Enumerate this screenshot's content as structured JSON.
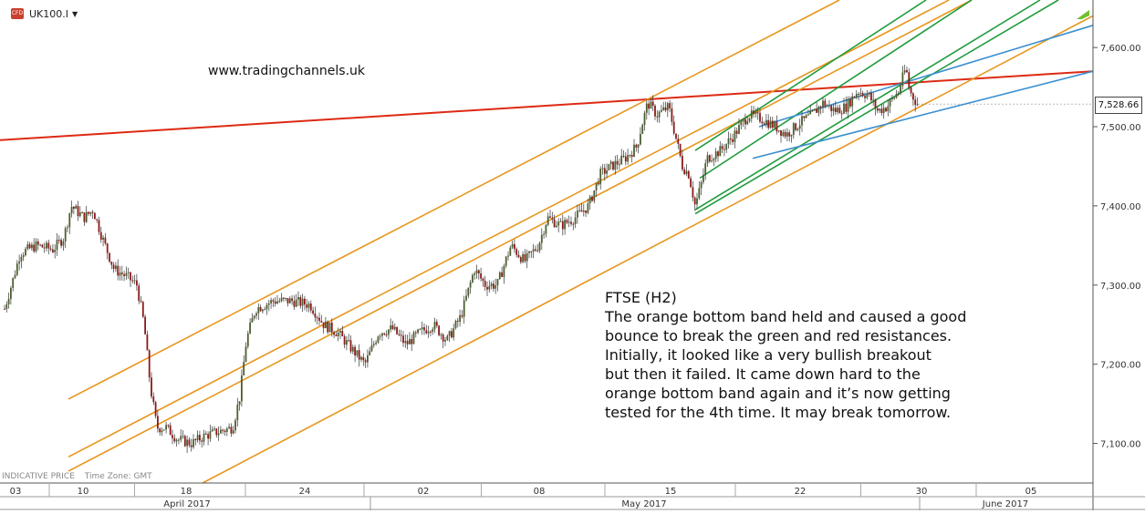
{
  "header": {
    "symbol": "UK100.I",
    "symbol_icon": "cfd-symbol-icon"
  },
  "annotations": {
    "website": "www.tradingchannels.uk",
    "title": "FTSE (H2)",
    "body": [
      "The orange bottom band held and caused a good",
      "bounce to break the green and red resistances.",
      "Initially, it looked like a very bullish breakout",
      "but then it failed. It came down hard to the",
      "orange bottom band again and it’s now getting",
      "tested for the 4th time. It may break tomorrow."
    ]
  },
  "footer": {
    "indicative": "INDICATIVE PRICE",
    "timezone": "Time Zone: GMT"
  },
  "price_tag": "7,528.66",
  "colors": {
    "bull": "#4c5f2e",
    "bear": "#8b1a1a",
    "orange": "#e8961e",
    "green": "#1f9b3c",
    "red": "#dd2a14",
    "blue": "#3a8fcf",
    "grid": "#cccccc",
    "axis_text": "#333333"
  },
  "chart_data": {
    "type": "candlestick",
    "timeframe": "H2",
    "ylim": [
      7050,
      7660
    ],
    "y_ticks": [
      "7,100.00",
      "7,200.00",
      "7,300.00",
      "7,400.00",
      "7,500.00",
      "7,600.00"
    ],
    "y_tick_values": [
      7100,
      7200,
      7300,
      7400,
      7500,
      7600
    ],
    "x_day_labels": [
      "03",
      "10",
      "18",
      "24",
      "02",
      "08",
      "15",
      "22",
      "30",
      "05"
    ],
    "x_day_positions": [
      17,
      91,
      204,
      334,
      464,
      591,
      735,
      877,
      1010,
      1130
    ],
    "x_month_labels": [
      "April 2017",
      "May 2017",
      "June 2017"
    ],
    "x_month_positions": [
      205,
      706,
      1102
    ],
    "last_price": 7528.66,
    "path": [
      [
        5,
        7270
      ],
      [
        15,
        7310
      ],
      [
        22,
        7340
      ],
      [
        40,
        7350
      ],
      [
        58,
        7345
      ],
      [
        70,
        7360
      ],
      [
        78,
        7400
      ],
      [
        92,
        7385
      ],
      [
        102,
        7395
      ],
      [
        112,
        7360
      ],
      [
        125,
        7320
      ],
      [
        140,
        7310
      ],
      [
        150,
        7300
      ],
      [
        158,
        7250
      ],
      [
        165,
        7170
      ],
      [
        172,
        7120
      ],
      [
        182,
        7120
      ],
      [
        195,
        7105
      ],
      [
        210,
        7100
      ],
      [
        225,
        7110
      ],
      [
        240,
        7115
      ],
      [
        255,
        7120
      ],
      [
        263,
        7160
      ],
      [
        270,
        7230
      ],
      [
        280,
        7270
      ],
      [
        300,
        7280
      ],
      [
        320,
        7280
      ],
      [
        340,
        7275
      ],
      [
        355,
        7250
      ],
      [
        370,
        7240
      ],
      [
        385,
        7220
      ],
      [
        400,
        7200
      ],
      [
        415,
        7240
      ],
      [
        430,
        7245
      ],
      [
        445,
        7225
      ],
      [
        460,
        7240
      ],
      [
        475,
        7250
      ],
      [
        490,
        7230
      ],
      [
        505,
        7260
      ],
      [
        520,
        7320
      ],
      [
        532,
        7300
      ],
      [
        545,
        7300
      ],
      [
        560,
        7350
      ],
      [
        575,
        7330
      ],
      [
        590,
        7350
      ],
      [
        600,
        7385
      ],
      [
        615,
        7375
      ],
      [
        630,
        7385
      ],
      [
        645,
        7400
      ],
      [
        658,
        7440
      ],
      [
        670,
        7450
      ],
      [
        685,
        7460
      ],
      [
        698,
        7475
      ],
      [
        703,
        7500
      ],
      [
        710,
        7530
      ],
      [
        720,
        7515
      ],
      [
        733,
        7525
      ],
      [
        742,
        7480
      ],
      [
        748,
        7450
      ],
      [
        755,
        7440
      ],
      [
        762,
        7400
      ],
      [
        768,
        7425
      ],
      [
        775,
        7460
      ],
      [
        790,
        7470
      ],
      [
        805,
        7490
      ],
      [
        820,
        7515
      ],
      [
        835,
        7510
      ],
      [
        850,
        7500
      ],
      [
        862,
        7490
      ],
      [
        877,
        7505
      ],
      [
        890,
        7515
      ],
      [
        902,
        7530
      ],
      [
        915,
        7520
      ],
      [
        927,
        7525
      ],
      [
        940,
        7545
      ],
      [
        952,
        7540
      ],
      [
        962,
        7520
      ],
      [
        972,
        7525
      ],
      [
        985,
        7545
      ],
      [
        993,
        7575
      ],
      [
        997,
        7545
      ],
      [
        1002,
        7535
      ],
      [
        1006,
        7528
      ]
    ],
    "trendlines": [
      {
        "color": "red",
        "from": [
          0,
          7483
        ],
        "to": [
          1198,
          7570
        ]
      },
      {
        "color": "orange",
        "from": [
          75,
          7156
        ],
        "to": [
          920,
          7660
        ]
      },
      {
        "color": "orange",
        "from": [
          75,
          7083
        ],
        "to": [
          1040,
          7660
        ]
      },
      {
        "color": "orange",
        "from": [
          75,
          7065
        ],
        "to": [
          1065,
          7660
        ]
      },
      {
        "color": "orange",
        "from": [
          222,
          7050
        ],
        "to": [
          1198,
          7640
        ]
      },
      {
        "color": "green",
        "from": [
          762,
          7470
        ],
        "to": [
          1015,
          7660
        ]
      },
      {
        "color": "green",
        "from": [
          767,
          7435
        ],
        "to": [
          1065,
          7660
        ]
      },
      {
        "color": "green",
        "from": [
          762,
          7395
        ],
        "to": [
          1140,
          7660
        ]
      },
      {
        "color": "green",
        "from": [
          762,
          7390
        ],
        "to": [
          1160,
          7660
        ]
      },
      {
        "color": "blue",
        "from": [
          825,
          7460
        ],
        "to": [
          1198,
          7570
        ]
      },
      {
        "color": "blue",
        "from": [
          832,
          7500
        ],
        "to": [
          1198,
          7628
        ]
      }
    ]
  }
}
